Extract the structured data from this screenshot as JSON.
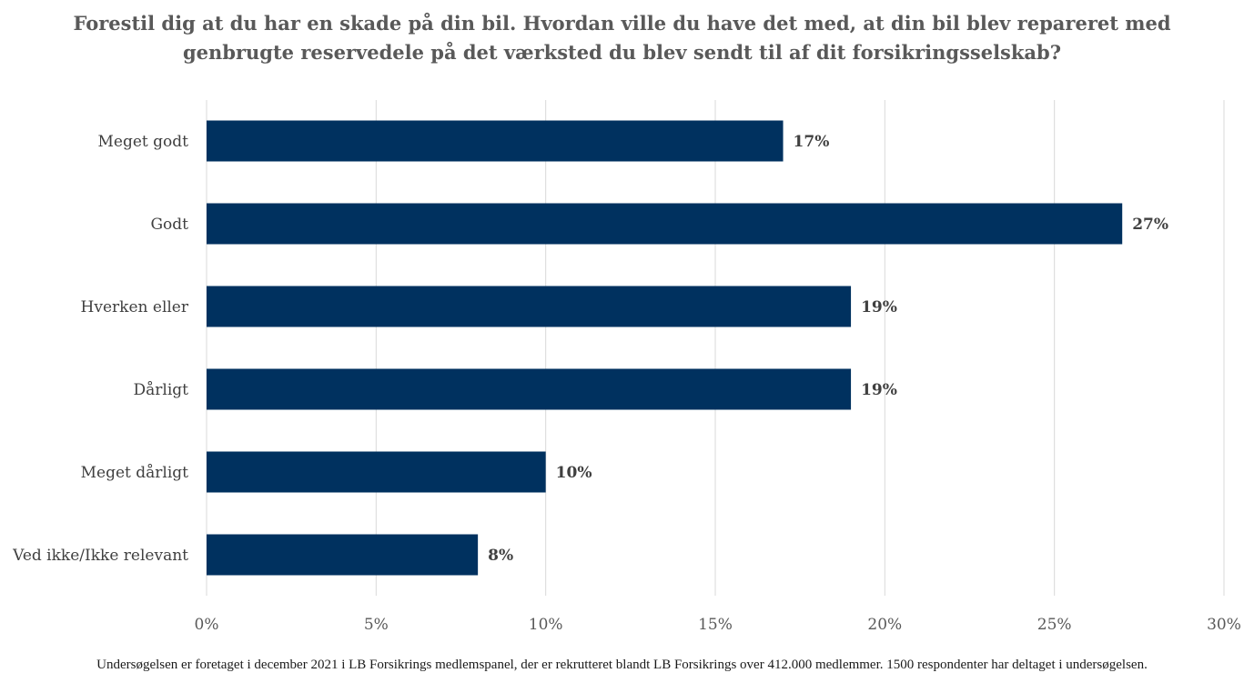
{
  "chart_data": {
    "type": "bar",
    "orientation": "horizontal",
    "title_lines": [
      "Forestil dig at du har en skade på din bil. Hvordan ville du have det med, at din bil blev repareret med",
      "genbrugte reservedele på det værksted du blev sendt til af dit forsikringsselskab?"
    ],
    "categories": [
      "Meget godt",
      "Godt",
      "Hverken eller",
      "Dårligt",
      "Meget dårligt",
      "Ved ikke/Ikke relevant"
    ],
    "values": [
      17,
      27,
      19,
      19,
      10,
      8
    ],
    "data_labels": [
      "17%",
      "27%",
      "19%",
      "19%",
      "10%",
      "8%"
    ],
    "x_ticks": [
      0,
      5,
      10,
      15,
      20,
      25,
      30
    ],
    "x_tick_labels": [
      "0%",
      "5%",
      "10%",
      "15%",
      "20%",
      "25%",
      "30%"
    ],
    "xlim": [
      0,
      30
    ],
    "grid": true,
    "legend": "none",
    "bar_color": "#00315f",
    "footnote": "Undersøgelsen er foretaget i december 2021 i LB Forsikrings medlemspanel, der er rekrutteret blandt LB Forsikrings over 412.000 medlemmer. 1500 respondenter har deltaget i undersøgelsen."
  }
}
